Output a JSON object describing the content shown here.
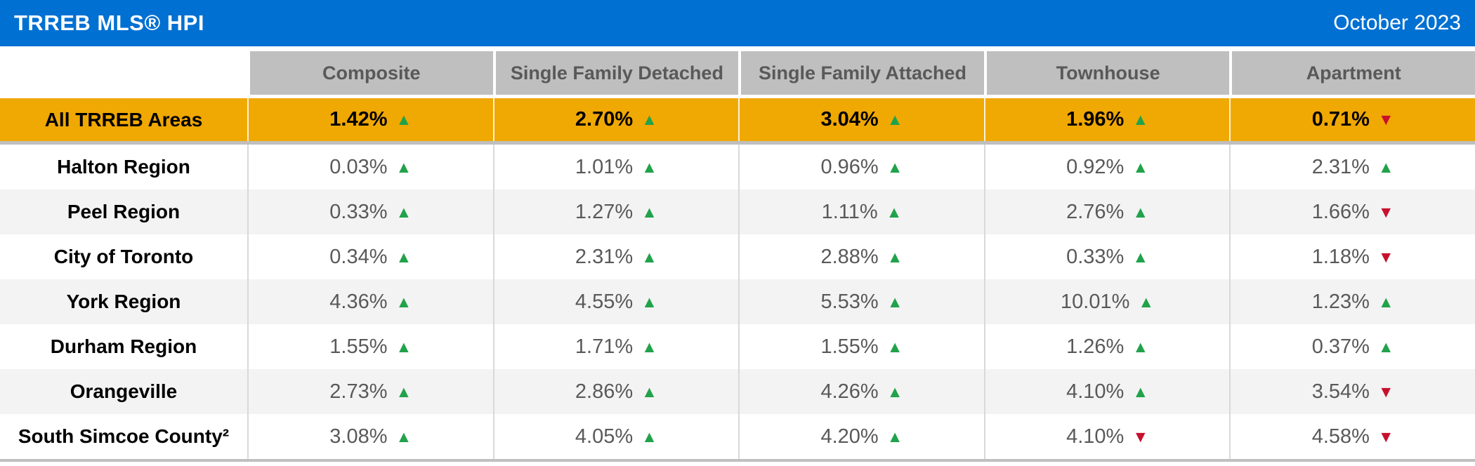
{
  "title_bar": {
    "title": "TRREB MLS® HPI",
    "date": "October 2023"
  },
  "icons": {
    "up": "▲",
    "down": "▼"
  },
  "colors": {
    "title_bar_bg": "#0070D2",
    "title_fg": "#FFFFFF",
    "header_bg": "#BFBFBF",
    "header_fg": "#595959",
    "highlight_bg": "#F0A802",
    "zebra_bg": "#F3F3F3",
    "value_fg": "#595959",
    "up_arrow": "#21A24B",
    "down_arrow": "#C8102E",
    "divider": "#BFBFBF"
  },
  "chart_data": {
    "type": "table",
    "title": "TRREB MLS® HPI",
    "period": "October 2023",
    "unit": "% (year-over-year change, with trend direction)",
    "columns": [
      "Composite",
      "Single Family Detached",
      "Single Family Attached",
      "Townhouse",
      "Apartment"
    ],
    "rows": [
      {
        "label": "All TRREB Areas",
        "highlight": true,
        "values": [
          1.42,
          2.7,
          3.04,
          1.96,
          0.71
        ],
        "directions": [
          "up",
          "up",
          "up",
          "up",
          "down"
        ]
      },
      {
        "label": "Halton Region",
        "highlight": false,
        "values": [
          0.03,
          1.01,
          0.96,
          0.92,
          2.31
        ],
        "directions": [
          "up",
          "up",
          "up",
          "up",
          "up"
        ]
      },
      {
        "label": "Peel Region",
        "highlight": false,
        "values": [
          0.33,
          1.27,
          1.11,
          2.76,
          1.66
        ],
        "directions": [
          "up",
          "up",
          "up",
          "up",
          "down"
        ]
      },
      {
        "label": "City of Toronto",
        "highlight": false,
        "values": [
          0.34,
          2.31,
          2.88,
          0.33,
          1.18
        ],
        "directions": [
          "up",
          "up",
          "up",
          "up",
          "down"
        ]
      },
      {
        "label": "York Region",
        "highlight": false,
        "values": [
          4.36,
          4.55,
          5.53,
          10.01,
          1.23
        ],
        "directions": [
          "up",
          "up",
          "up",
          "up",
          "up"
        ]
      },
      {
        "label": "Durham Region",
        "highlight": false,
        "values": [
          1.55,
          1.71,
          1.55,
          1.26,
          0.37
        ],
        "directions": [
          "up",
          "up",
          "up",
          "up",
          "up"
        ]
      },
      {
        "label": "Orangeville",
        "highlight": false,
        "values": [
          2.73,
          2.86,
          4.26,
          4.1,
          3.54
        ],
        "directions": [
          "up",
          "up",
          "up",
          "up",
          "down"
        ]
      },
      {
        "label": "South Simcoe County²",
        "highlight": false,
        "values": [
          3.08,
          4.05,
          4.2,
          4.1,
          4.58
        ],
        "directions": [
          "up",
          "up",
          "up",
          "down",
          "down"
        ]
      }
    ]
  }
}
